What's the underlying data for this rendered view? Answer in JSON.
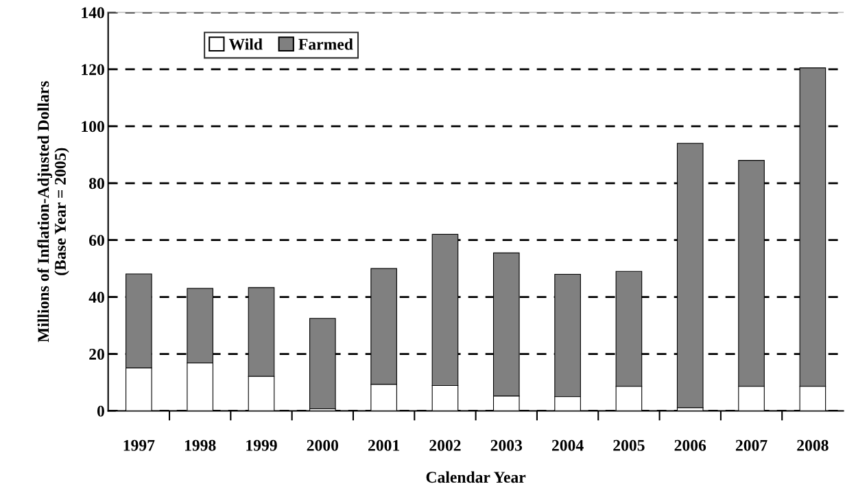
{
  "chart_data": {
    "type": "bar",
    "stacked": true,
    "xlabel": "Calendar Year",
    "ylabel": "Millions of Inflation-Adjusted Dollars\n(Base Year = 2005)",
    "categories": [
      "1997",
      "1998",
      "1999",
      "2000",
      "2001",
      "2002",
      "2003",
      "2004",
      "2005",
      "2006",
      "2007",
      "2008"
    ],
    "series": [
      {
        "name": "Wild",
        "color": "#ffffff",
        "values": [
          15.1,
          16.8,
          12.1,
          0.7,
          9.3,
          8.9,
          5.2,
          5.0,
          8.6,
          1.1,
          8.6,
          8.6
        ]
      },
      {
        "name": "Farmed",
        "color": "#808080",
        "values": [
          33.0,
          26.2,
          31.2,
          31.8,
          40.7,
          53.1,
          50.3,
          43.0,
          40.4,
          92.9,
          79.4,
          111.9
        ]
      }
    ],
    "ylim": [
      0,
      140
    ],
    "yticks": [
      0,
      20,
      40,
      60,
      80,
      100,
      120,
      140
    ],
    "grid": "y",
    "line_style": "dashed",
    "legend": "top left"
  }
}
